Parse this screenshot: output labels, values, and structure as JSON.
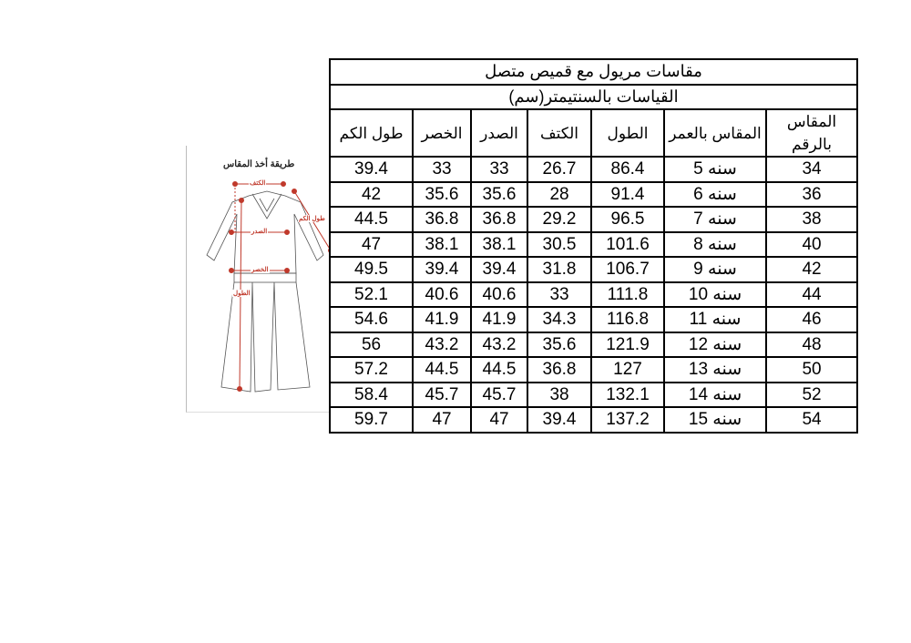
{
  "diagram": {
    "title": "طريقة أخذ المقاس",
    "labels": {
      "shoulder": "الكتف",
      "chest": "الصدر",
      "waist": "الخصر",
      "sleeve": "طول الكم",
      "length": "الطول"
    },
    "accent_color": "#c0392b"
  },
  "table": {
    "title": "مقاسات مريول مع قميص متصل",
    "subtitle": "القياسات بالسنتيمتر(سم)",
    "headers": [
      "المقاس بالرقم",
      "المقاس بالعمر",
      "الطول",
      "الكتف",
      "الصدر",
      "الخصر",
      "طول الكم"
    ],
    "rows": [
      [
        "34",
        "سنه 5",
        "86.4",
        "26.7",
        "33",
        "33",
        "39.4"
      ],
      [
        "36",
        "سنه 6",
        "91.4",
        "28",
        "35.6",
        "35.6",
        "42"
      ],
      [
        "38",
        "سنه 7",
        "96.5",
        "29.2",
        "36.8",
        "36.8",
        "44.5"
      ],
      [
        "40",
        "سنه 8",
        "101.6",
        "30.5",
        "38.1",
        "38.1",
        "47"
      ],
      [
        "42",
        "سنه 9",
        "106.7",
        "31.8",
        "39.4",
        "39.4",
        "49.5"
      ],
      [
        "44",
        "سنه 10",
        "111.8",
        "33",
        "40.6",
        "40.6",
        "52.1"
      ],
      [
        "46",
        "سنه 11",
        "116.8",
        "34.3",
        "41.9",
        "41.9",
        "54.6"
      ],
      [
        "48",
        "سنه 12",
        "121.9",
        "35.6",
        "43.2",
        "43.2",
        "56"
      ],
      [
        "50",
        "سنه 13",
        "127",
        "36.8",
        "44.5",
        "44.5",
        "57.2"
      ],
      [
        "52",
        "سنه 14",
        "132.1",
        "38",
        "45.7",
        "45.7",
        "58.4"
      ],
      [
        "54",
        "سنه 15",
        "137.2",
        "39.4",
        "47",
        "47",
        "59.7"
      ]
    ]
  }
}
